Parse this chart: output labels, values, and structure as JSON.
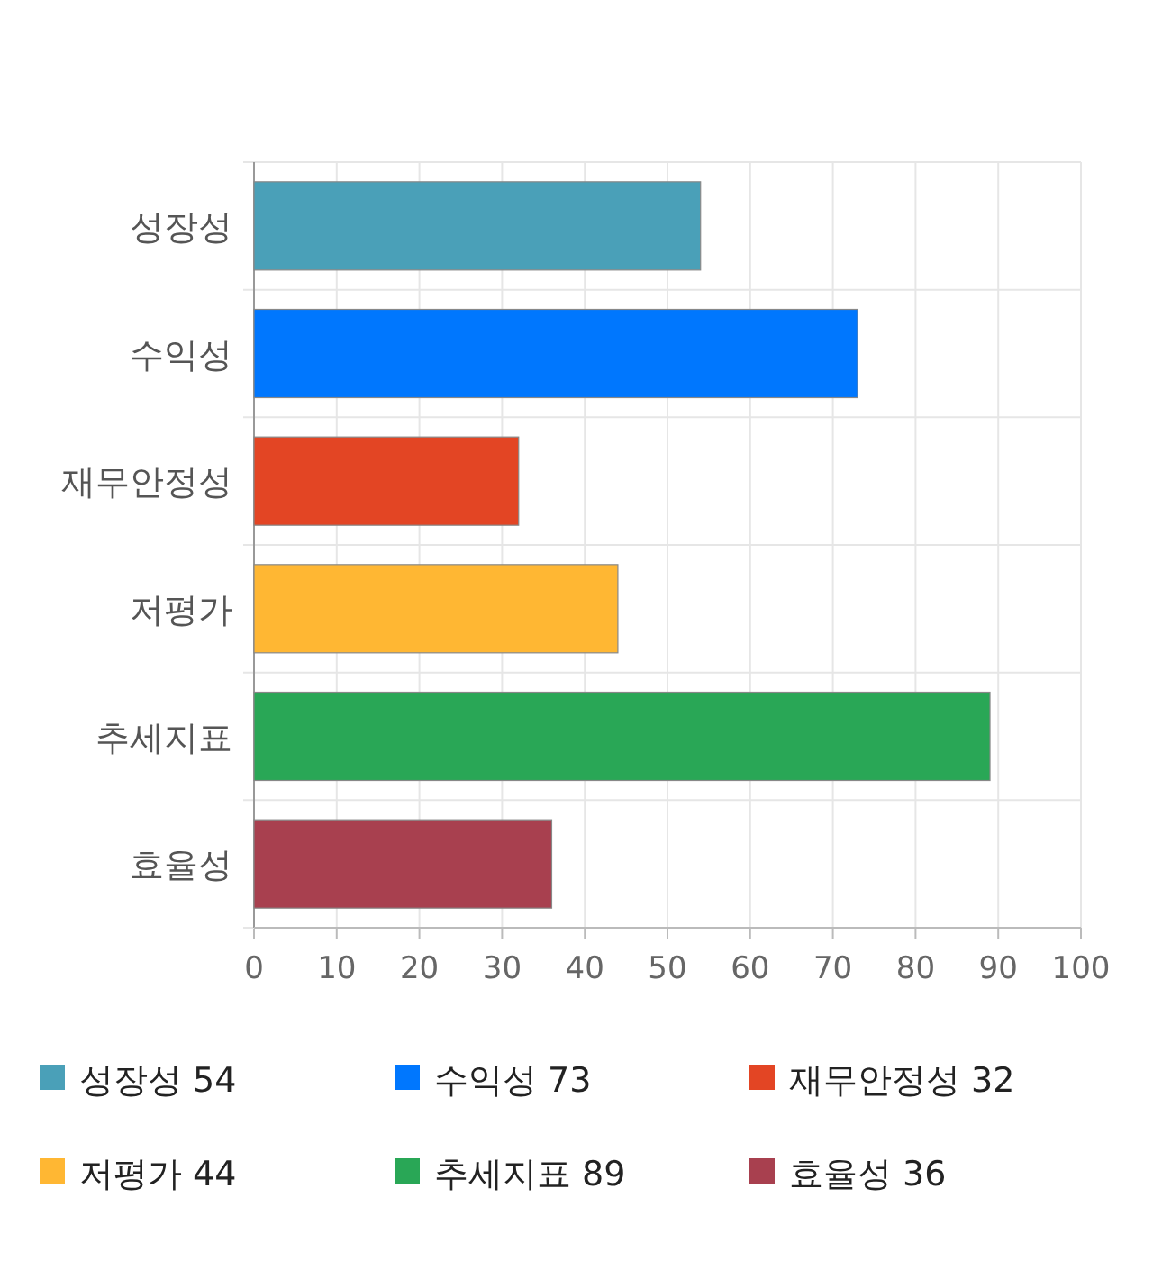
{
  "chart_data": {
    "type": "bar",
    "orientation": "horizontal",
    "categories": [
      "성장성",
      "수익성",
      "재무안정성",
      "저평가",
      "추세지표",
      "효율성"
    ],
    "series": [
      {
        "name": "성장성 54",
        "color": "#4aa0b8",
        "values": [
          54,
          null,
          null,
          null,
          null,
          null
        ]
      },
      {
        "name": "수익성 73",
        "color": "#0077fe",
        "values": [
          null,
          73,
          null,
          null,
          null,
          null
        ]
      },
      {
        "name": "재무안정성 32",
        "color": "#e34524",
        "values": [
          null,
          null,
          32,
          null,
          null,
          null
        ]
      },
      {
        "name": "저평가 44",
        "color": "#ffb733",
        "values": [
          null,
          null,
          null,
          44,
          null,
          null
        ]
      },
      {
        "name": "추세지표 89",
        "color": "#29a756",
        "values": [
          null,
          null,
          null,
          null,
          89,
          null
        ]
      },
      {
        "name": "효율성 36",
        "color": "#a8404f",
        "values": [
          null,
          null,
          null,
          null,
          null,
          36
        ]
      }
    ],
    "xlim": [
      0,
      100
    ],
    "xticks": [
      0,
      10,
      20,
      30,
      40,
      50,
      60,
      70,
      80,
      90,
      100
    ],
    "grid": true,
    "legend": "bottom"
  }
}
